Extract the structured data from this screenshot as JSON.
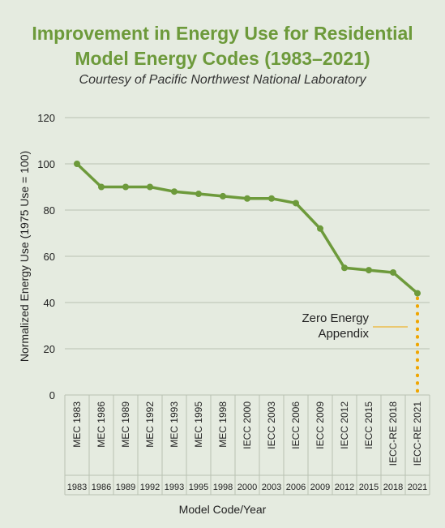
{
  "chart_data": {
    "type": "line",
    "title_lines": [
      "Improvement in Energy Use for Residential",
      "Model Energy Codes (1983–2021)"
    ],
    "subtitle": "Courtesy of Pacific Northwest National Laboratory",
    "xlabel": "Model Code/Year",
    "ylabel": "Normalized Energy Use (1975 Use = 100)",
    "ylim": [
      0,
      120
    ],
    "yticks": [
      0,
      20,
      40,
      60,
      80,
      100,
      120
    ],
    "grid": true,
    "categories": [
      "MEC 1983",
      "MEC 1986",
      "MEC 1989",
      "MEC 1992",
      "MEC 1993",
      "MEC 1995",
      "MEC 1998",
      "IECC 2000",
      "IECC 2003",
      "IECC 2006",
      "IECC 2009",
      "IECC 2012",
      "IECC 2015",
      "IECC-RE 2018",
      "IECC-RE 2021"
    ],
    "years": [
      "1983",
      "1986",
      "1989",
      "1992",
      "1993",
      "1995",
      "1998",
      "2000",
      "2003",
      "2006",
      "2009",
      "2012",
      "2015",
      "2018",
      "2021"
    ],
    "values": [
      100,
      90,
      90,
      90,
      88,
      87,
      86,
      85,
      85,
      83,
      72,
      55,
      54,
      53,
      44
    ],
    "annotation": {
      "lines": [
        "Zero Energy",
        "Appendix"
      ],
      "x_category": "IECC-RE 2021",
      "from_value": 44,
      "to_value": 0
    },
    "colors": {
      "line": "#6d9a3b",
      "annotation": "#f0a500",
      "title": "#6d9a3b",
      "background": "#e5ebe0"
    }
  }
}
